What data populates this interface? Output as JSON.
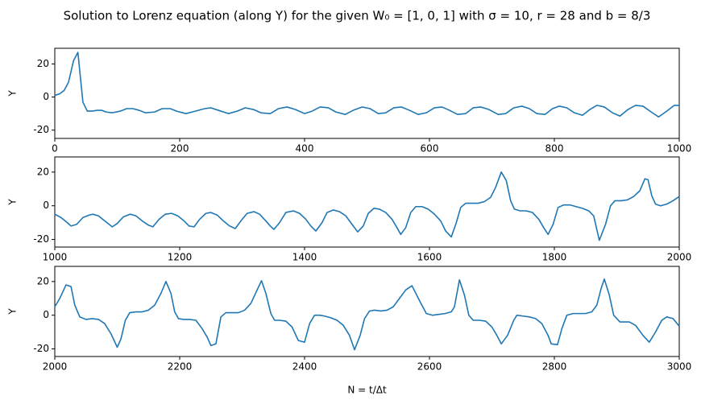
{
  "chart_data": [
    {
      "type": "line",
      "title": "Solution to Lorenz equation (along Y) for the given W₀ = [1, 0, 1] with σ = 10, r = 28 and b = 8/3",
      "ylabel": "Y",
      "color": "#1f77b4",
      "x": [
        0,
        8,
        15,
        22,
        30,
        37,
        45,
        52,
        60,
        68,
        75,
        82,
        92,
        105,
        115,
        125,
        135,
        145,
        160,
        172,
        185,
        195,
        210,
        225,
        240,
        250,
        262,
        278,
        292,
        305,
        318,
        330,
        345,
        358,
        372,
        385,
        400,
        412,
        425,
        438,
        450,
        465,
        478,
        492,
        505,
        518,
        530,
        543,
        555,
        568,
        582,
        595,
        608,
        620,
        632,
        645,
        658,
        670,
        682,
        695,
        710,
        722,
        735,
        748,
        760,
        772,
        785,
        797,
        808,
        820,
        832,
        845,
        857,
        868,
        880,
        893,
        905,
        918,
        930,
        942,
        955,
        967,
        980,
        992,
        1000
      ],
      "values": [
        1,
        2,
        4,
        9,
        22,
        27,
        -3,
        -8.5,
        -8.5,
        -8,
        -8,
        -9,
        -9.5,
        -8.5,
        -7,
        -7,
        -8,
        -9.5,
        -9,
        -7,
        -7,
        -8.5,
        -10,
        -8.5,
        -7,
        -6.5,
        -8,
        -10,
        -8.5,
        -6.5,
        -7.5,
        -9.5,
        -10,
        -7,
        -6,
        -7.5,
        -10,
        -8.5,
        -6,
        -6.5,
        -9,
        -10.5,
        -8,
        -6,
        -7,
        -10,
        -9.5,
        -6.5,
        -6,
        -8,
        -10.5,
        -9.5,
        -6.5,
        -6,
        -8,
        -10.5,
        -10,
        -6.5,
        -6,
        -7.5,
        -10.5,
        -10,
        -6.5,
        -5.5,
        -7,
        -10,
        -10.5,
        -7,
        -5.5,
        -6.5,
        -9.5,
        -11,
        -7.5,
        -5,
        -6,
        -9.5,
        -11.5,
        -7.5,
        -5,
        -5.5,
        -9,
        -12,
        -8.5,
        -5,
        -5
      ],
      "xlim": [
        0,
        1000
      ],
      "xticks": [
        0,
        200,
        400,
        600,
        800,
        1000
      ],
      "ylim": [
        -25,
        29.5
      ],
      "yticks": [
        -20,
        0,
        20
      ]
    },
    {
      "type": "line",
      "ylabel": "Y",
      "color": "#1f77b4",
      "x": [
        1000,
        1010,
        1020,
        1026,
        1035,
        1045,
        1055,
        1061,
        1070,
        1080,
        1092,
        1100,
        1110,
        1121,
        1130,
        1140,
        1150,
        1157,
        1167,
        1177,
        1187,
        1197,
        1207,
        1215,
        1223,
        1232,
        1242,
        1250,
        1260,
        1270,
        1280,
        1289,
        1298,
        1308,
        1319,
        1328,
        1338,
        1345,
        1351,
        1360,
        1370,
        1382,
        1392,
        1402,
        1410,
        1418,
        1428,
        1436,
        1446,
        1456,
        1466,
        1476,
        1485,
        1494,
        1502,
        1511,
        1520,
        1530,
        1540,
        1548,
        1554,
        1562,
        1570,
        1578,
        1588,
        1598,
        1608,
        1618,
        1626,
        1635,
        1643,
        1650,
        1658,
        1668,
        1678,
        1688,
        1698,
        1706,
        1715,
        1723,
        1730,
        1736,
        1745,
        1755,
        1765,
        1775,
        1783,
        1790,
        1798,
        1806,
        1815,
        1825,
        1835,
        1845,
        1855,
        1863,
        1868,
        1872,
        1882,
        1890,
        1897,
        1907,
        1917,
        1927,
        1937,
        1945,
        1950,
        1956,
        1962,
        1970,
        1980,
        1990,
        2000
      ],
      "values": [
        -5,
        -7,
        -10,
        -12,
        -11,
        -7,
        -5.5,
        -5,
        -6,
        -9,
        -12.5,
        -10.5,
        -6.5,
        -5,
        -6,
        -9,
        -11.5,
        -12.5,
        -8,
        -5,
        -4.5,
        -6,
        -9,
        -12,
        -12.5,
        -8,
        -4.5,
        -4,
        -5.5,
        -9,
        -12,
        -13.5,
        -9,
        -4.5,
        -3.5,
        -5,
        -9,
        -12,
        -14,
        -10,
        -4,
        -3,
        -4.5,
        -8,
        -12,
        -15,
        -10,
        -4,
        -2.5,
        -3.5,
        -6,
        -11,
        -15.5,
        -12,
        -4.5,
        -1.5,
        -2,
        -4,
        -8,
        -13,
        -17,
        -13,
        -4,
        -0.5,
        -0.5,
        -2,
        -5,
        -9,
        -15,
        -18.5,
        -10,
        -1,
        1.5,
        1.5,
        1.5,
        2.5,
        5,
        11,
        20,
        15,
        3,
        -2,
        -3,
        -3,
        -4,
        -8,
        -13,
        -17,
        -11,
        -1,
        0.5,
        0.5,
        -0.5,
        -1.5,
        -3,
        -6,
        -14,
        -20.5,
        -11,
        0,
        3,
        3,
        3.5,
        5.5,
        9,
        16,
        15.5,
        6,
        1,
        0,
        1,
        3,
        5.5
      ],
      "xlim": [
        1000,
        2000
      ],
      "xticks": [
        1000,
        1200,
        1400,
        1600,
        1800,
        2000
      ],
      "ylim": [
        -24.5,
        29
      ],
      "yticks": [
        -20,
        0,
        20
      ]
    },
    {
      "type": "line",
      "ylabel": "Y",
      "xlabel": "N = t/Δt",
      "color": "#1f77b4",
      "x": [
        2000,
        2008,
        2018,
        2026,
        2032,
        2040,
        2050,
        2060,
        2070,
        2080,
        2090,
        2100,
        2106,
        2113,
        2120,
        2130,
        2140,
        2150,
        2160,
        2170,
        2178,
        2186,
        2192,
        2198,
        2206,
        2216,
        2226,
        2236,
        2244,
        2250,
        2258,
        2266,
        2274,
        2284,
        2294,
        2304,
        2314,
        2324,
        2331,
        2338,
        2346,
        2352,
        2360,
        2370,
        2380,
        2390,
        2400,
        2408,
        2416,
        2424,
        2432,
        2442,
        2452,
        2462,
        2472,
        2480,
        2489,
        2496,
        2504,
        2512,
        2522,
        2532,
        2542,
        2552,
        2562,
        2572,
        2585,
        2595,
        2605,
        2615,
        2625,
        2635,
        2640,
        2648,
        2656,
        2663,
        2670,
        2680,
        2690,
        2700,
        2708,
        2715,
        2725,
        2735,
        2740,
        2750,
        2760,
        2770,
        2780,
        2790,
        2795,
        2805,
        2812,
        2820,
        2830,
        2840,
        2850,
        2860,
        2868,
        2875,
        2880,
        2888,
        2895,
        2905,
        2915,
        2920,
        2930,
        2942,
        2952,
        2962,
        2972,
        2980,
        2990,
        3000
      ],
      "values": [
        5,
        10,
        18,
        17,
        6,
        -1,
        -2.5,
        -2,
        -2.5,
        -5,
        -11,
        -19,
        -14,
        -3,
        1.5,
        2,
        2,
        3,
        6,
        13,
        20,
        13,
        2,
        -2,
        -2.5,
        -2.5,
        -3,
        -8,
        -13,
        -18,
        -17,
        -1,
        1.5,
        1.5,
        1.5,
        3,
        7,
        15,
        20.5,
        13,
        1,
        -3,
        -3,
        -3.5,
        -7,
        -15,
        -16,
        -5,
        0,
        0,
        -0.5,
        -1.5,
        -3,
        -6,
        -12,
        -20.5,
        -12,
        -2,
        2.5,
        3,
        2.5,
        3,
        5,
        10,
        15,
        17.5,
        8,
        1,
        0,
        0.5,
        1,
        2,
        5,
        21,
        12,
        0,
        -3,
        -3,
        -3.5,
        -7,
        -12,
        -17,
        -12,
        -3,
        0,
        -0.5,
        -1,
        -2,
        -5,
        -12,
        -17,
        -17.5,
        -8,
        0,
        1,
        1,
        1,
        2,
        6,
        16,
        21.5,
        12,
        0,
        -4,
        -4,
        -4,
        -6,
        -12,
        -16,
        -10,
        -3,
        -1,
        -2,
        -6.5
      ],
      "xlim": [
        2000,
        3000
      ],
      "xticks": [
        2000,
        2200,
        2400,
        2600,
        2800,
        3000
      ],
      "ylim": [
        -24.5,
        29
      ],
      "yticks": [
        -20,
        0,
        20
      ]
    }
  ]
}
